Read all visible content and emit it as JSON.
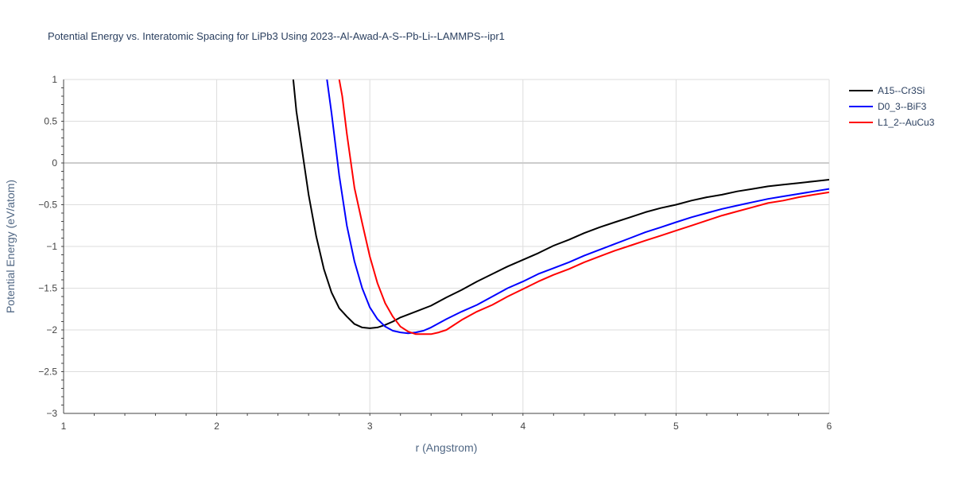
{
  "chart_data": {
    "type": "line",
    "title": "Potential Energy vs. Interatomic Spacing for LiPb3 Using 2023--Al-Awad-A-S--Pb-Li--LAMMPS--ipr1",
    "xlabel": "r (Angstrom)",
    "ylabel": "Potential Energy (eV/atom)",
    "xlim": [
      1,
      6
    ],
    "ylim": [
      -3,
      1
    ],
    "xticks": [
      "1",
      "2",
      "3",
      "4",
      "5",
      "6"
    ],
    "yticks": [
      "1",
      "0.5",
      "0",
      "−0.5",
      "−1",
      "−1.5",
      "−2",
      "−2.5",
      "−3"
    ],
    "grid": true,
    "legend_position": "top-right",
    "series": [
      {
        "name": "A15--Cr3Si",
        "color": "#000000",
        "x": [
          2.5,
          2.52,
          2.55,
          2.6,
          2.65,
          2.7,
          2.75,
          2.8,
          2.85,
          2.9,
          2.95,
          3.0,
          3.05,
          3.1,
          3.15,
          3.2,
          3.3,
          3.4,
          3.5,
          3.6,
          3.7,
          3.8,
          3.9,
          4.0,
          4.1,
          4.2,
          4.3,
          4.4,
          4.5,
          4.6,
          4.7,
          4.8,
          4.9,
          5.0,
          5.1,
          5.2,
          5.3,
          5.4,
          5.5,
          5.6,
          5.7,
          5.8,
          5.9,
          6.0
        ],
        "y": [
          1.0,
          0.62,
          0.25,
          -0.38,
          -0.88,
          -1.27,
          -1.55,
          -1.74,
          -1.84,
          -1.93,
          -1.97,
          -1.98,
          -1.97,
          -1.94,
          -1.9,
          -1.85,
          -1.78,
          -1.71,
          -1.61,
          -1.52,
          -1.42,
          -1.33,
          -1.24,
          -1.16,
          -1.08,
          -0.99,
          -0.92,
          -0.84,
          -0.77,
          -0.71,
          -0.65,
          -0.59,
          -0.54,
          -0.5,
          -0.45,
          -0.41,
          -0.38,
          -0.34,
          -0.31,
          -0.28,
          -0.26,
          -0.24,
          -0.22,
          -0.2
        ]
      },
      {
        "name": "D0_3--BiF3",
        "color": "#0000ff",
        "x": [
          2.72,
          2.75,
          2.8,
          2.85,
          2.9,
          2.95,
          3.0,
          3.05,
          3.1,
          3.15,
          3.2,
          3.25,
          3.3,
          3.35,
          3.4,
          3.5,
          3.6,
          3.7,
          3.8,
          3.9,
          4.0,
          4.1,
          4.2,
          4.3,
          4.4,
          4.5,
          4.6,
          4.7,
          4.8,
          4.9,
          5.0,
          5.1,
          5.2,
          5.3,
          5.4,
          5.5,
          5.6,
          5.7,
          5.8,
          5.9,
          6.0
        ],
        "y": [
          1.0,
          0.6,
          -0.15,
          -0.75,
          -1.18,
          -1.5,
          -1.73,
          -1.87,
          -1.96,
          -2.01,
          -2.03,
          -2.04,
          -2.03,
          -2.01,
          -1.97,
          -1.87,
          -1.78,
          -1.7,
          -1.6,
          -1.5,
          -1.42,
          -1.33,
          -1.26,
          -1.19,
          -1.11,
          -1.04,
          -0.97,
          -0.9,
          -0.83,
          -0.77,
          -0.71,
          -0.65,
          -0.6,
          -0.55,
          -0.51,
          -0.47,
          -0.43,
          -0.4,
          -0.37,
          -0.34,
          -0.31
        ]
      },
      {
        "name": "L1_2--AuCu3",
        "color": "#ff0000",
        "x": [
          2.8,
          2.82,
          2.85,
          2.9,
          2.95,
          3.0,
          3.05,
          3.1,
          3.15,
          3.2,
          3.25,
          3.3,
          3.35,
          3.4,
          3.45,
          3.5,
          3.6,
          3.7,
          3.8,
          3.9,
          4.0,
          4.1,
          4.2,
          4.3,
          4.4,
          4.5,
          4.6,
          4.7,
          4.8,
          4.9,
          5.0,
          5.1,
          5.2,
          5.3,
          5.4,
          5.5,
          5.6,
          5.7,
          5.8,
          5.9,
          6.0
        ],
        "y": [
          1.0,
          0.8,
          0.35,
          -0.3,
          -0.72,
          -1.12,
          -1.44,
          -1.68,
          -1.84,
          -1.96,
          -2.02,
          -2.05,
          -2.05,
          -2.05,
          -2.03,
          -2.0,
          -1.88,
          -1.78,
          -1.7,
          -1.6,
          -1.51,
          -1.42,
          -1.34,
          -1.27,
          -1.19,
          -1.12,
          -1.05,
          -0.99,
          -0.93,
          -0.87,
          -0.81,
          -0.75,
          -0.69,
          -0.63,
          -0.58,
          -0.53,
          -0.48,
          -0.45,
          -0.41,
          -0.38,
          -0.35
        ]
      }
    ]
  }
}
